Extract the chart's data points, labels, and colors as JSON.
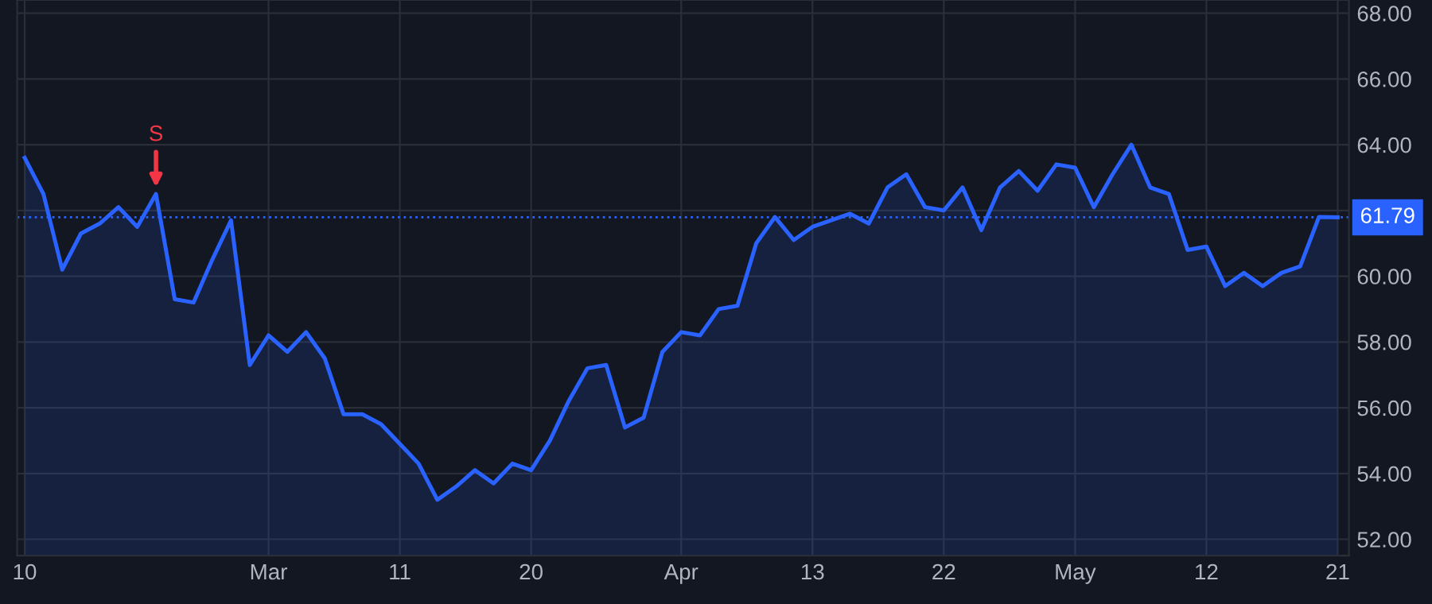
{
  "chart_data": {
    "type": "area",
    "categories": [
      "10",
      null,
      null,
      null,
      null,
      null,
      null,
      null,
      null,
      null,
      null,
      null,
      null,
      "Mar",
      null,
      null,
      null,
      null,
      null,
      null,
      "11",
      null,
      null,
      null,
      null,
      null,
      null,
      "20",
      null,
      null,
      null,
      null,
      null,
      null,
      null,
      "Apr",
      null,
      null,
      null,
      null,
      null,
      null,
      "13",
      null,
      null,
      null,
      null,
      null,
      null,
      "22",
      null,
      null,
      null,
      null,
      null,
      null,
      "May",
      null,
      null,
      null,
      null,
      null,
      null,
      "12",
      null,
      null,
      null,
      null,
      null,
      null,
      "21"
    ],
    "series": [
      {
        "color": "#2962ff",
        "values": [
          63.6,
          62.5,
          60.2,
          61.3,
          61.6,
          62.1,
          61.5,
          62.5,
          59.3,
          59.2,
          60.5,
          61.7,
          57.3,
          58.2,
          57.7,
          58.3,
          57.5,
          55.8,
          55.8,
          55.5,
          54.9,
          54.3,
          53.2,
          53.6,
          54.1,
          53.7,
          54.3,
          54.1,
          55.0,
          56.2,
          57.2,
          57.3,
          55.4,
          55.7,
          57.7,
          58.3,
          58.2,
          59.0,
          59.1,
          61.0,
          61.8,
          61.1,
          61.5,
          61.7,
          61.9,
          61.6,
          62.7,
          63.1,
          62.1,
          62.0,
          62.7,
          61.4,
          62.7,
          63.2,
          62.6,
          63.4,
          63.3,
          62.1,
          63.1,
          64.0,
          62.7,
          62.5,
          60.8,
          60.9,
          59.7,
          60.1,
          59.7,
          60.1,
          60.3,
          61.8,
          61.79
        ]
      }
    ],
    "ylim": [
      51.5,
      68.4
    ],
    "yticks": [
      {
        "value": 52,
        "label": "52.00"
      },
      {
        "value": 54,
        "label": "54.00"
      },
      {
        "value": 56,
        "label": "56.00"
      },
      {
        "value": 58,
        "label": "58.00"
      },
      {
        "value": 60,
        "label": "60.00"
      },
      {
        "value": 62,
        "label": null
      },
      {
        "value": 64,
        "label": "64.00"
      },
      {
        "value": 66,
        "label": "66.00"
      },
      {
        "value": 68,
        "label": "68.00"
      }
    ],
    "ref_lines": [
      {
        "axis": "y",
        "value": 61.79,
        "label": "61.79",
        "color": "#2962ff",
        "line_style": "dotted"
      }
    ],
    "annotations": [
      {
        "text": "S",
        "y": 62.5
      }
    ],
    "grid": true,
    "legend": false,
    "marker": "none",
    "line_style": "solid"
  }
}
